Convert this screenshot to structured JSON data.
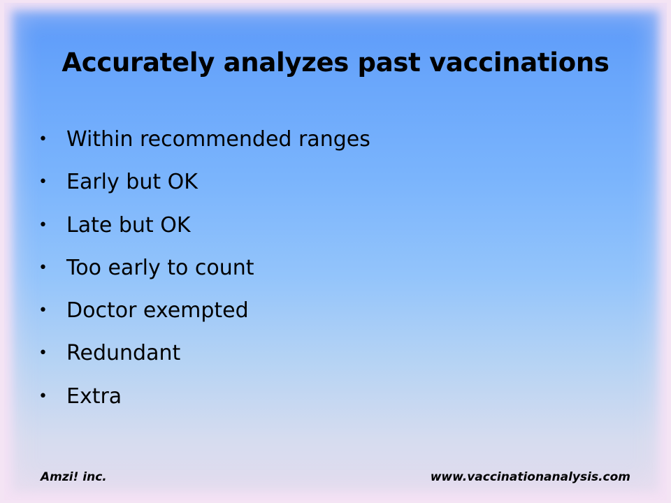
{
  "slide": {
    "title": "Accurately analyzes past vaccinations",
    "bullets": [
      {
        "text": "Within recommended ranges"
      },
      {
        "text": "Early but OK"
      },
      {
        "text": "Late but OK"
      },
      {
        "text": "Too early to count"
      },
      {
        "text": "Doctor exempted"
      },
      {
        "text": "Redundant"
      },
      {
        "text": "Extra"
      }
    ],
    "bullet_marker": "•",
    "footer": {
      "left": "Amzi! inc.",
      "right": "www.vaccinationanalysis.com"
    }
  },
  "colors": {
    "background_top": "#5a98f8",
    "background_bottom": "#e4dcee",
    "frame": "#f4e4f4",
    "text": "#000000"
  }
}
